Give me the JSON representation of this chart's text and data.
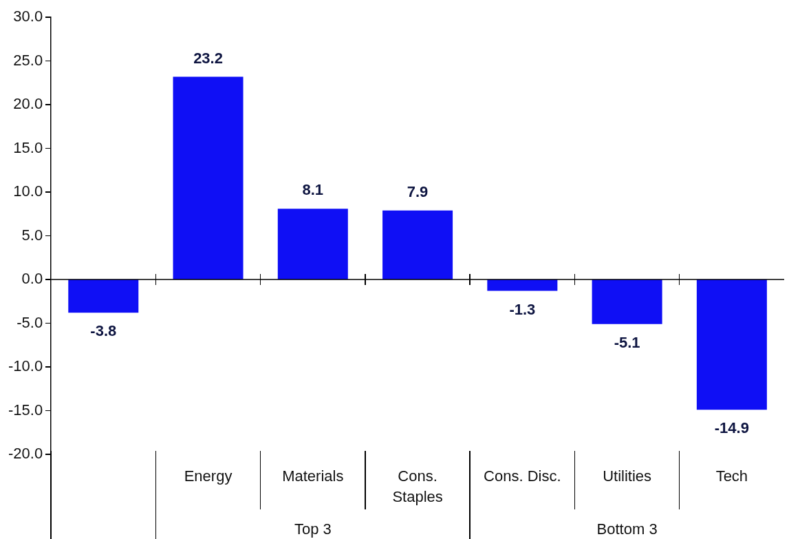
{
  "chart_data": {
    "type": "bar",
    "categories": [
      null,
      "Energy",
      "Materials",
      "Cons. Staples",
      "Cons. Disc.",
      "Utilities",
      "Tech"
    ],
    "values": [
      -3.8,
      23.2,
      8.1,
      7.9,
      -1.3,
      -5.1,
      -14.9
    ],
    "color": "#0f0ff5",
    "ylim": [
      -20,
      30
    ],
    "yticks": [
      {
        "value": 30,
        "label": "30.0"
      },
      {
        "value": 25,
        "label": "25.0"
      },
      {
        "value": 20,
        "label": "20.0"
      },
      {
        "value": 15,
        "label": "15.0"
      },
      {
        "value": 10,
        "label": "10.0"
      },
      {
        "value": 5,
        "label": "5.0"
      },
      {
        "value": 0,
        "label": "0.0"
      },
      {
        "value": -5,
        "label": "-5.0"
      },
      {
        "value": -10,
        "label": "-10.0"
      },
      {
        "value": -15,
        "label": "-15.0"
      },
      {
        "value": -20,
        "label": "-20.0"
      }
    ],
    "data_labels": true,
    "legend": false,
    "annotations": [
      "Top 3",
      "Bottom 3"
    ]
  }
}
